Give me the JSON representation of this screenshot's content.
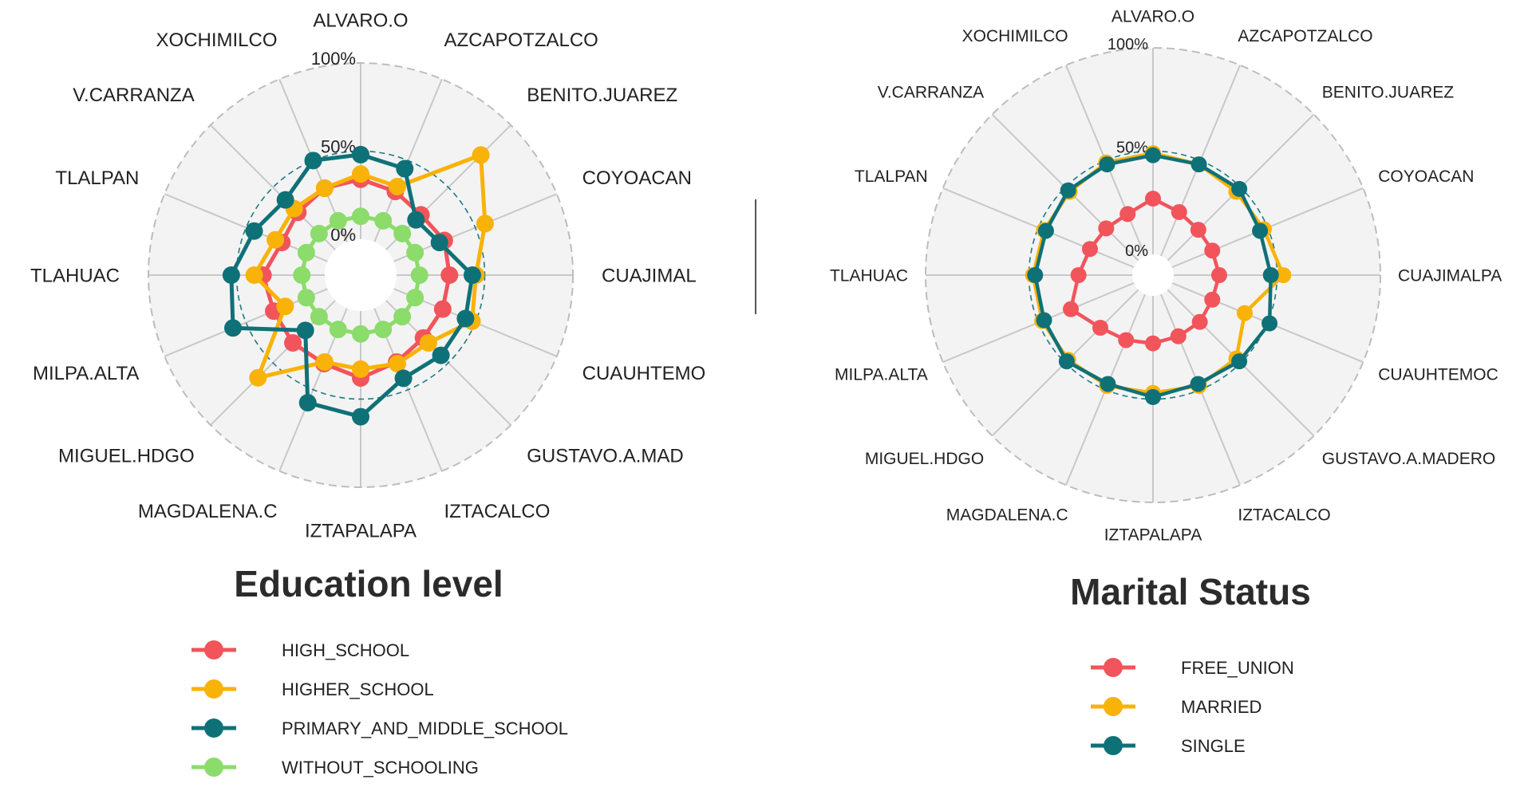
{
  "colors": {
    "panel_bg": "#f4f3f3",
    "grid_line": "#c8c8c8",
    "outer_dash": "#bdbdbd",
    "ref_dash": "#1f7a80",
    "text": "#222222"
  },
  "chart_data": [
    {
      "type": "radar",
      "title": "Education level",
      "axis_tick_labels": [
        "0%",
        "50%",
        "100%"
      ],
      "rlim": [
        0,
        100
      ],
      "reference_circle": 50,
      "categories": [
        "ALVARO.O",
        "AZCAPOTZALCO",
        "BENITO.JUAREZ",
        "COYOACAN",
        "CUAJIMAL",
        "CUAUHTEMO",
        "GUSTAVO.A.MAD",
        "IZTACALCO",
        "IZTAPALAPA",
        "MAGDALENA.C",
        "MIGUEL.HDGO",
        "MILPA.ALTA",
        "TLAHUAC",
        "TLALPAN",
        "V.CARRANZA",
        "XOCHIMILCO"
      ],
      "legend_position": "bottom",
      "series": [
        {
          "name": "HIGH_SCHOOL",
          "color": "#f2545b",
          "values": [
            34,
            31,
            28,
            31,
            30,
            30,
            30,
            33,
            38,
            34,
            34,
            33,
            35,
            28,
            30,
            33
          ]
        },
        {
          "name": "HIGHER_SCHOOL",
          "color": "#f9b208",
          "values": [
            37,
            34,
            76,
            56,
            45,
            48,
            34,
            34,
            33,
            33,
            62,
            26,
            40,
            32,
            33,
            33
          ]
        },
        {
          "name": "PRIMARY_AND_MIDDLE_SCHOOL",
          "color": "#0f7178",
          "values": [
            48,
            45,
            24,
            28,
            43,
            44,
            44,
            43,
            60,
            58,
            24,
            58,
            53,
            45,
            40,
            50
          ]
        },
        {
          "name": "WITHOUT_SCHOOLING",
          "color": "#8bdc6a",
          "values": [
            13,
            13,
            13,
            13,
            13,
            13,
            13,
            13,
            13,
            13,
            13,
            13,
            13,
            13,
            13,
            13
          ]
        }
      ]
    },
    {
      "type": "radar",
      "title": "Marital Status",
      "axis_tick_labels": [
        "0%",
        "50%",
        "100%"
      ],
      "rlim": [
        0,
        100
      ],
      "reference_circle": 50,
      "categories": [
        "ALVARO.O",
        "AZCAPOTZALCO",
        "BENITO.JUAREZ",
        "COYOACAN",
        "CUAJIMALPA",
        "CUAUHTEMOC",
        "GUSTAVO.A.MADERO",
        "IZTACALCO",
        "IZTAPALAPA",
        "MAGDALENA.C",
        "MIGUEL.HDGO",
        "MILPA.ALTA",
        "TLAHUAC",
        "TLALPAN",
        "V.CARRANZA",
        "XOCHIMILCO"
      ],
      "legend_position": "bottom",
      "series": [
        {
          "name": "FREE_UNION",
          "color": "#f2545b",
          "values": [
            27,
            23,
            21,
            21,
            22,
            21,
            22,
            22,
            23,
            24,
            26,
            33,
            26,
            23,
            22,
            22
          ]
        },
        {
          "name": "MARRIED",
          "color": "#f9b208",
          "values": [
            49,
            48,
            47,
            48,
            53,
            38,
            47,
            48,
            47,
            48,
            48,
            48,
            48,
            47,
            47,
            49
          ]
        },
        {
          "name": "SINGLE",
          "color": "#0f7178",
          "values": [
            48,
            48,
            49,
            46,
            47,
            51,
            49,
            47,
            49,
            47,
            49,
            47,
            47,
            46,
            48,
            48
          ]
        }
      ]
    }
  ]
}
